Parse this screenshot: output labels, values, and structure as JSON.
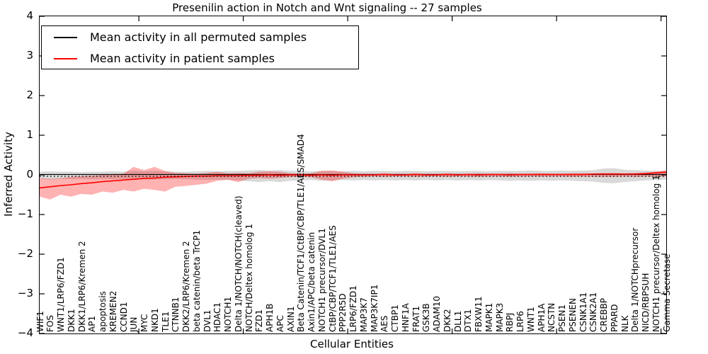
{
  "title": "Presenilin action in Notch and Wnt signaling -- 27 samples",
  "axes": {
    "y_label": "Inferred Activity",
    "x_label": "Cellular Entities",
    "y_ticks": [
      4,
      3,
      2,
      1,
      0,
      -1,
      -2,
      -3,
      -4
    ],
    "ylim": [
      -4,
      4
    ]
  },
  "legend": {
    "position": "upper left",
    "entries": [
      {
        "label": "Mean activity in all permuted samples",
        "color": "#000000"
      },
      {
        "label": "Mean activity in patient samples",
        "color": "#ff0000"
      }
    ]
  },
  "chart_data": {
    "type": "line",
    "title": "Presenilin action in Notch and Wnt signaling -- 27 samples",
    "xlabel": "Cellular Entities",
    "ylabel": "Inferred Activity",
    "ylim": [
      -4,
      4
    ],
    "grid": false,
    "categories": [
      "WIF1",
      "FOS",
      "WNT1/LRP6/FZD1",
      "DKK1",
      "DKK1/LRP6/Kremen 2",
      "AP1",
      "apoptosis",
      "KREMEN2",
      "CCND1",
      "JUN",
      "MYC",
      "NKD1",
      "TLE1",
      "CTNNB1",
      "DKK2/LRP6/Kremen 2",
      "beta catenin/beta TrCP1",
      "DVL1",
      "HDAC1",
      "NOTCH1",
      "Delta 1/NOTCH/NOTCH(cleaved)",
      "NOTCH/Deltex homolog 1",
      "FZD1",
      "APH1B",
      "APC",
      "AXIN1",
      "Beta Catenin/TCF1/CtBP/CBP/TLE1/AES/SMAD4",
      "Axin1/APC/beta catenin",
      "NOTCH1 precursor/DVL1",
      "CtBP/CBP/TCF1/TLE1/AES",
      "PPP2R5D",
      "LRP6/FZD1",
      "MAP3K7",
      "MAP3K7IP1",
      "AES",
      "CTBP1",
      "HNF1A",
      "FRAT1",
      "GSK3B",
      "ADAM10",
      "DKK2",
      "DLL1",
      "DTX1",
      "FBXW11",
      "MAPK1",
      "MAPK3",
      "RBPJ",
      "LRP6",
      "WNT1",
      "APH1A",
      "NCSTN",
      "PSEN1",
      "PSENEN",
      "CSNK1A1",
      "CSNK2A1",
      "CREBBP",
      "PPARD",
      "NLK",
      "Delta 1/NOTCHprecursor",
      "NICD/RBPSUH",
      "NOTCH1 precursor/Deltex homolog 1",
      "Gamma Secretase"
    ],
    "series": [
      {
        "name": "Mean activity in all permuted samples",
        "color": "#000000",
        "band_opacity": 0.15,
        "values": [
          0.01,
          0.01,
          0.01,
          0.01,
          0.01,
          0.01,
          0.01,
          0.01,
          0.01,
          0.01,
          0.01,
          0.01,
          0.01,
          0.01,
          0.01,
          0.01,
          0.01,
          0.01,
          0.01,
          0.01,
          0.01,
          0.01,
          0.01,
          0.01,
          0.01,
          0.01,
          0.01,
          0.01,
          0.01,
          0.01,
          0.01,
          0.01,
          0.01,
          0.01,
          0.01,
          0.01,
          0.01,
          0.01,
          0.01,
          0.01,
          0.01,
          0.01,
          0.01,
          0.01,
          0.01,
          0.01,
          0.01,
          0.01,
          0.01,
          0.01,
          0.01,
          0.01,
          0.01,
          0.01,
          0.01,
          0.01,
          0.01,
          0.01,
          0.01,
          0.01,
          0.01
        ],
        "band_lower": [
          -0.1,
          -0.12,
          -0.1,
          -0.11,
          -0.1,
          -0.11,
          -0.1,
          -0.11,
          -0.1,
          -0.12,
          -0.11,
          -0.12,
          -0.11,
          -0.1,
          -0.11,
          -0.12,
          -0.13,
          -0.12,
          -0.13,
          -0.14,
          -0.16,
          -0.18,
          -0.16,
          -0.18,
          -0.15,
          -0.14,
          -0.13,
          -0.15,
          -0.14,
          -0.13,
          -0.14,
          -0.13,
          -0.14,
          -0.13,
          -0.14,
          -0.13,
          -0.14,
          -0.13,
          -0.14,
          -0.13,
          -0.14,
          -0.13,
          -0.14,
          -0.13,
          -0.14,
          -0.15,
          -0.14,
          -0.15,
          -0.14,
          -0.15,
          -0.14,
          -0.15,
          -0.16,
          -0.17,
          -0.2,
          -0.21,
          -0.18,
          -0.16,
          -0.14,
          -0.13,
          -0.12
        ],
        "band_upper": [
          0.08,
          0.09,
          0.08,
          0.08,
          0.07,
          0.08,
          0.08,
          0.09,
          0.08,
          0.1,
          0.09,
          0.1,
          0.09,
          0.08,
          0.08,
          0.09,
          0.1,
          0.09,
          0.1,
          0.1,
          0.11,
          0.12,
          0.11,
          0.12,
          0.1,
          0.1,
          0.09,
          0.1,
          0.1,
          0.09,
          0.1,
          0.09,
          0.1,
          0.1,
          0.09,
          0.1,
          0.1,
          0.09,
          0.1,
          0.1,
          0.09,
          0.1,
          0.1,
          0.09,
          0.1,
          0.1,
          0.1,
          0.11,
          0.1,
          0.1,
          0.11,
          0.1,
          0.11,
          0.12,
          0.16,
          0.17,
          0.13,
          0.12,
          0.11,
          0.1,
          0.1
        ]
      },
      {
        "name": "Mean activity in patient samples",
        "color": "#ff0000",
        "band_opacity": 0.3,
        "values": [
          -0.33,
          -0.3,
          -0.27,
          -0.25,
          -0.22,
          -0.2,
          -0.17,
          -0.15,
          -0.13,
          -0.11,
          -0.09,
          -0.08,
          -0.06,
          -0.05,
          -0.04,
          -0.03,
          -0.03,
          -0.02,
          -0.02,
          -0.02,
          -0.01,
          -0.01,
          0.0,
          -0.01,
          0.0,
          0.0,
          -0.01,
          0.0,
          -0.01,
          0.0,
          0.0,
          0.0,
          0.0,
          0.01,
          0.0,
          0.0,
          0.01,
          0.0,
          0.0,
          0.01,
          0.0,
          0.01,
          0.0,
          0.01,
          0.01,
          0.0,
          0.01,
          0.01,
          0.01,
          0.01,
          0.01,
          0.01,
          0.01,
          0.02,
          0.02,
          0.02,
          0.02,
          0.02,
          0.03,
          0.05,
          0.07
        ],
        "band_lower": [
          -0.55,
          -0.62,
          -0.5,
          -0.55,
          -0.48,
          -0.5,
          -0.42,
          -0.45,
          -0.38,
          -0.42,
          -0.35,
          -0.38,
          -0.42,
          -0.3,
          -0.28,
          -0.25,
          -0.22,
          -0.15,
          -0.12,
          -0.18,
          -0.1,
          -0.08,
          -0.1,
          -0.08,
          -0.06,
          -0.05,
          -0.06,
          -0.12,
          -0.16,
          -0.1,
          -0.06,
          -0.05,
          -0.04,
          -0.05,
          -0.04,
          -0.04,
          -0.05,
          -0.04,
          -0.04,
          -0.05,
          -0.04,
          -0.04,
          -0.05,
          -0.04,
          -0.04,
          -0.05,
          -0.04,
          -0.04,
          -0.04,
          -0.04,
          -0.04,
          -0.05,
          -0.04,
          -0.05,
          -0.05,
          -0.05,
          -0.04,
          -0.05,
          -0.04,
          -0.05,
          -0.04
        ],
        "band_upper": [
          -0.08,
          -0.1,
          -0.08,
          -0.05,
          -0.03,
          -0.02,
          0.0,
          0.02,
          0.03,
          0.2,
          0.12,
          0.2,
          0.1,
          0.05,
          0.04,
          0.03,
          0.05,
          0.08,
          0.04,
          0.05,
          0.04,
          0.08,
          0.09,
          0.08,
          0.04,
          0.03,
          0.04,
          0.1,
          0.11,
          0.08,
          0.04,
          0.03,
          0.03,
          0.04,
          0.03,
          0.03,
          0.04,
          0.03,
          0.03,
          0.04,
          0.03,
          0.03,
          0.04,
          0.03,
          0.03,
          0.04,
          0.03,
          0.03,
          0.04,
          0.03,
          0.03,
          0.04,
          0.04,
          0.04,
          0.05,
          0.05,
          0.04,
          0.05,
          0.06,
          0.08,
          0.11
        ]
      }
    ],
    "reference_line": {
      "style": "dotted",
      "color": "#000000",
      "value": -0.035
    }
  }
}
